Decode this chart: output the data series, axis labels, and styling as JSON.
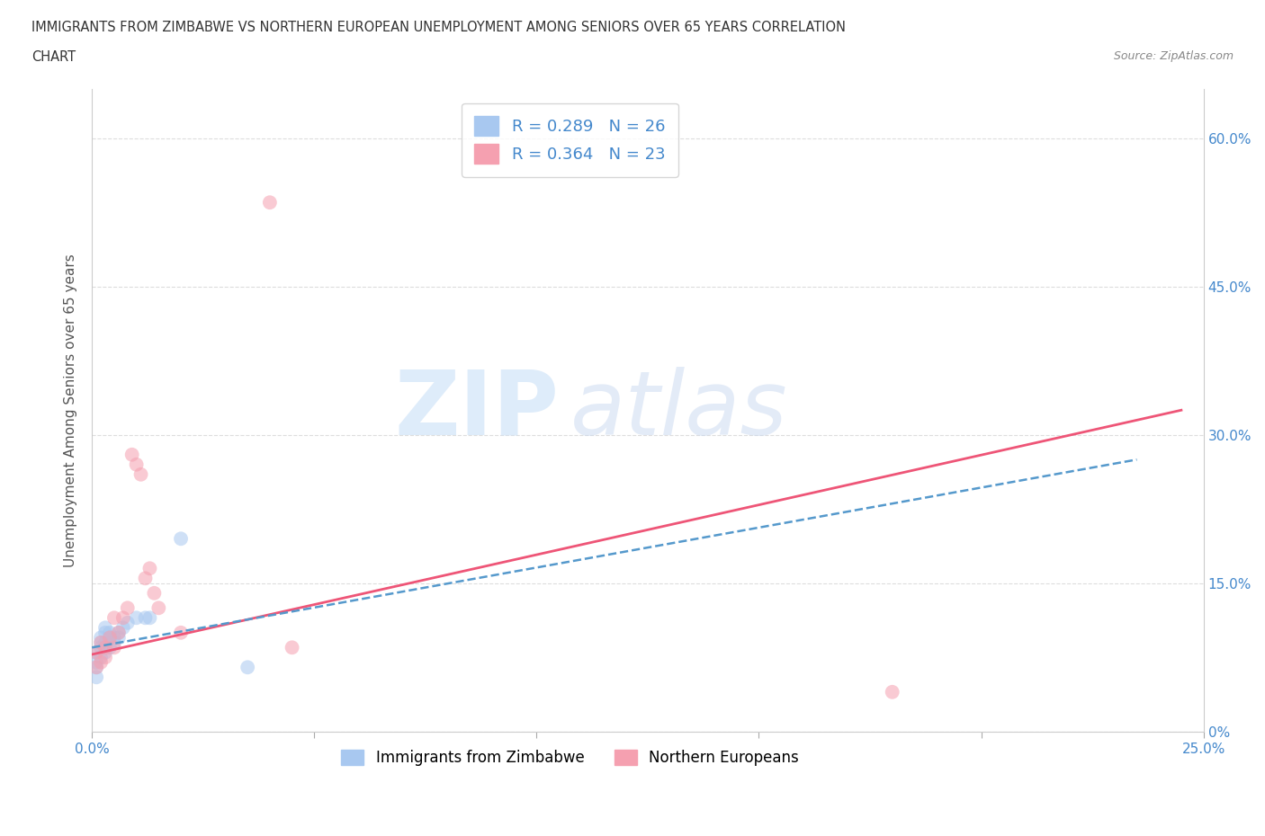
{
  "title_line1": "IMMIGRANTS FROM ZIMBABWE VS NORTHERN EUROPEAN UNEMPLOYMENT AMONG SENIORS OVER 65 YEARS CORRELATION",
  "title_line2": "CHART",
  "source": "Source: ZipAtlas.com",
  "ylabel": "Unemployment Among Seniors over 65 years",
  "r_blue": 0.289,
  "n_blue": 26,
  "r_pink": 0.364,
  "n_pink": 23,
  "blue_color": "#a8c8f0",
  "pink_color": "#f5a0b0",
  "blue_line_color": "#5599cc",
  "pink_line_color": "#ee5577",
  "blue_scatter": [
    [
      0.001,
      0.055
    ],
    [
      0.001,
      0.07
    ],
    [
      0.001,
      0.065
    ],
    [
      0.001,
      0.08
    ],
    [
      0.002,
      0.09
    ],
    [
      0.002,
      0.085
    ],
    [
      0.002,
      0.075
    ],
    [
      0.002,
      0.095
    ],
    [
      0.003,
      0.08
    ],
    [
      0.003,
      0.09
    ],
    [
      0.003,
      0.1
    ],
    [
      0.003,
      0.105
    ],
    [
      0.004,
      0.085
    ],
    [
      0.004,
      0.095
    ],
    [
      0.004,
      0.1
    ],
    [
      0.005,
      0.09
    ],
    [
      0.005,
      0.095
    ],
    [
      0.006,
      0.095
    ],
    [
      0.006,
      0.1
    ],
    [
      0.007,
      0.105
    ],
    [
      0.008,
      0.11
    ],
    [
      0.01,
      0.115
    ],
    [
      0.012,
      0.115
    ],
    [
      0.013,
      0.115
    ],
    [
      0.02,
      0.195
    ],
    [
      0.035,
      0.065
    ]
  ],
  "pink_scatter": [
    [
      0.001,
      0.065
    ],
    [
      0.001,
      0.08
    ],
    [
      0.002,
      0.07
    ],
    [
      0.002,
      0.09
    ],
    [
      0.003,
      0.075
    ],
    [
      0.003,
      0.085
    ],
    [
      0.004,
      0.095
    ],
    [
      0.005,
      0.115
    ],
    [
      0.005,
      0.085
    ],
    [
      0.006,
      0.1
    ],
    [
      0.007,
      0.115
    ],
    [
      0.008,
      0.125
    ],
    [
      0.009,
      0.28
    ],
    [
      0.01,
      0.27
    ],
    [
      0.011,
      0.26
    ],
    [
      0.012,
      0.155
    ],
    [
      0.013,
      0.165
    ],
    [
      0.014,
      0.14
    ],
    [
      0.015,
      0.125
    ],
    [
      0.02,
      0.1
    ],
    [
      0.045,
      0.085
    ],
    [
      0.18,
      0.04
    ],
    [
      0.04,
      0.535
    ]
  ],
  "xlim": [
    0.0,
    0.25
  ],
  "ylim": [
    0.0,
    0.65
  ],
  "xticks": [
    0.0,
    0.05,
    0.1,
    0.15,
    0.2,
    0.25
  ],
  "yticks": [
    0.0,
    0.15,
    0.3,
    0.45,
    0.6
  ],
  "ytick_right_labels": [
    "0%",
    "15.0%",
    "30.0%",
    "45.0%",
    "60.0%"
  ],
  "xtick_labels_show": [
    "0.0%",
    "25.0%"
  ],
  "watermark_zip": "ZIP",
  "watermark_atlas": "atlas",
  "background_color": "#ffffff",
  "grid_color": "#dddddd",
  "marker_size": 130,
  "marker_alpha": 0.55,
  "blue_line_x_start": 0.0,
  "blue_line_x_end": 0.235,
  "pink_line_x_start": 0.0,
  "pink_line_x_end": 0.245
}
